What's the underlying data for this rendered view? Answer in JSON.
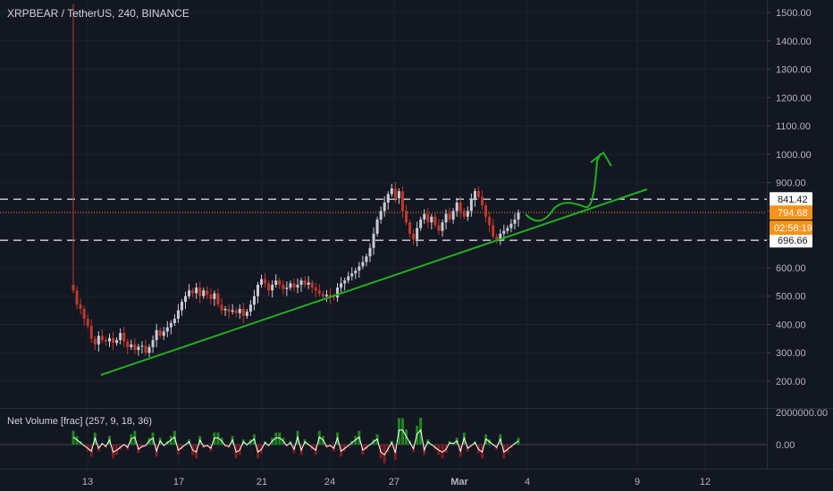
{
  "header": {
    "symbol_line": "XRPBEAR / TetherUS, 240, BINANCE"
  },
  "colors": {
    "background": "#131722",
    "grid": "#1e222d",
    "axis_text": "#b2b5be",
    "up": "#c9ccd4",
    "down": "#c0392b",
    "price_line": "#f7931a",
    "trendline": "#1fb01f",
    "dashed_level": "#d1d4dc",
    "volume_pos": "#1b8a1b",
    "volume_neg": "#7d1f1f",
    "volume_line": "#ffffff"
  },
  "chart_data": [
    {
      "type": "candlestick",
      "ylim": [
        150,
        1530
      ],
      "y_ticks": [
        "1500.00",
        "1400.00",
        "1300.00",
        "1200.00",
        "1100.00",
        "1000.00",
        "900.00",
        "800.00",
        "700.00",
        "600.00",
        "500.00",
        "400.00",
        "300.00",
        "200.00"
      ],
      "y_tick_values": [
        1500,
        1400,
        1300,
        1200,
        1100,
        1000,
        900,
        800,
        700,
        600,
        500,
        400,
        300,
        200
      ],
      "x_ticks": [
        "13",
        "17",
        "21",
        "24",
        "27",
        "Mar",
        "4",
        "9",
        "12"
      ],
      "levels": [
        {
          "label": "841.42",
          "value": 841.42,
          "style": "dashed"
        },
        {
          "label": "794.68",
          "value": 794.68,
          "style": "current"
        },
        {
          "label": "696.66",
          "value": 696.66,
          "style": "dashed"
        }
      ],
      "countdown": "02:56:19",
      "spike_high": 1530,
      "candles": [
        {
          "c": 520,
          "d": "down"
        },
        {
          "c": 470,
          "d": "down"
        },
        {
          "c": 455,
          "d": "down"
        },
        {
          "c": 420,
          "d": "down"
        },
        {
          "c": 395,
          "d": "down"
        },
        {
          "c": 350,
          "d": "down"
        },
        {
          "c": 330,
          "d": "down"
        },
        {
          "c": 360,
          "d": "up"
        },
        {
          "c": 345,
          "d": "down"
        },
        {
          "c": 340,
          "d": "down"
        },
        {
          "c": 352,
          "d": "up"
        },
        {
          "c": 335,
          "d": "down"
        },
        {
          "c": 345,
          "d": "up"
        },
        {
          "c": 370,
          "d": "up"
        },
        {
          "c": 340,
          "d": "down"
        },
        {
          "c": 320,
          "d": "down"
        },
        {
          "c": 330,
          "d": "up"
        },
        {
          "c": 310,
          "d": "down"
        },
        {
          "c": 322,
          "d": "up"
        },
        {
          "c": 325,
          "d": "up"
        },
        {
          "c": 300,
          "d": "down"
        },
        {
          "c": 320,
          "d": "up"
        },
        {
          "c": 345,
          "d": "up"
        },
        {
          "c": 380,
          "d": "up"
        },
        {
          "c": 360,
          "d": "down"
        },
        {
          "c": 375,
          "d": "up"
        },
        {
          "c": 390,
          "d": "up"
        },
        {
          "c": 405,
          "d": "up"
        },
        {
          "c": 420,
          "d": "up"
        },
        {
          "c": 450,
          "d": "up"
        },
        {
          "c": 480,
          "d": "up"
        },
        {
          "c": 500,
          "d": "up"
        },
        {
          "c": 520,
          "d": "up"
        },
        {
          "c": 510,
          "d": "down"
        },
        {
          "c": 530,
          "d": "up"
        },
        {
          "c": 500,
          "d": "down"
        },
        {
          "c": 520,
          "d": "up"
        },
        {
          "c": 505,
          "d": "down"
        },
        {
          "c": 490,
          "d": "down"
        },
        {
          "c": 510,
          "d": "up"
        },
        {
          "c": 470,
          "d": "down"
        },
        {
          "c": 450,
          "d": "down"
        },
        {
          "c": 455,
          "d": "up"
        },
        {
          "c": 445,
          "d": "down"
        },
        {
          "c": 450,
          "d": "up"
        },
        {
          "c": 440,
          "d": "down"
        },
        {
          "c": 455,
          "d": "up"
        },
        {
          "c": 430,
          "d": "down"
        },
        {
          "c": 445,
          "d": "up"
        },
        {
          "c": 470,
          "d": "up"
        },
        {
          "c": 500,
          "d": "up"
        },
        {
          "c": 540,
          "d": "up"
        },
        {
          "c": 560,
          "d": "up"
        },
        {
          "c": 545,
          "d": "down"
        },
        {
          "c": 520,
          "d": "down"
        },
        {
          "c": 540,
          "d": "up"
        },
        {
          "c": 555,
          "d": "up"
        },
        {
          "c": 540,
          "d": "down"
        },
        {
          "c": 525,
          "d": "down"
        },
        {
          "c": 530,
          "d": "up"
        },
        {
          "c": 545,
          "d": "up"
        },
        {
          "c": 530,
          "d": "down"
        },
        {
          "c": 540,
          "d": "up"
        },
        {
          "c": 555,
          "d": "up"
        },
        {
          "c": 540,
          "d": "down"
        },
        {
          "c": 548,
          "d": "up"
        },
        {
          "c": 530,
          "d": "down"
        },
        {
          "c": 520,
          "d": "down"
        },
        {
          "c": 508,
          "d": "down"
        },
        {
          "c": 500,
          "d": "down"
        },
        {
          "c": 505,
          "d": "up"
        },
        {
          "c": 498,
          "d": "down"
        },
        {
          "c": 495,
          "d": "down"
        },
        {
          "c": 530,
          "d": "up"
        },
        {
          "c": 545,
          "d": "up"
        },
        {
          "c": 555,
          "d": "up"
        },
        {
          "c": 570,
          "d": "up"
        },
        {
          "c": 580,
          "d": "up"
        },
        {
          "c": 590,
          "d": "up"
        },
        {
          "c": 605,
          "d": "up"
        },
        {
          "c": 620,
          "d": "up"
        },
        {
          "c": 640,
          "d": "up"
        },
        {
          "c": 670,
          "d": "up"
        },
        {
          "c": 720,
          "d": "up"
        },
        {
          "c": 770,
          "d": "up"
        },
        {
          "c": 800,
          "d": "up"
        },
        {
          "c": 830,
          "d": "up"
        },
        {
          "c": 860,
          "d": "up"
        },
        {
          "c": 880,
          "d": "up"
        },
        {
          "c": 845,
          "d": "down"
        },
        {
          "c": 870,
          "d": "up"
        },
        {
          "c": 800,
          "d": "down"
        },
        {
          "c": 760,
          "d": "down"
        },
        {
          "c": 720,
          "d": "down"
        },
        {
          "c": 700,
          "d": "down"
        },
        {
          "c": 740,
          "d": "up"
        },
        {
          "c": 770,
          "d": "up"
        },
        {
          "c": 790,
          "d": "up"
        },
        {
          "c": 760,
          "d": "down"
        },
        {
          "c": 780,
          "d": "up"
        },
        {
          "c": 750,
          "d": "down"
        },
        {
          "c": 730,
          "d": "down"
        },
        {
          "c": 760,
          "d": "up"
        },
        {
          "c": 790,
          "d": "up"
        },
        {
          "c": 770,
          "d": "down"
        },
        {
          "c": 800,
          "d": "up"
        },
        {
          "c": 830,
          "d": "up"
        },
        {
          "c": 800,
          "d": "down"
        },
        {
          "c": 780,
          "d": "down"
        },
        {
          "c": 800,
          "d": "up"
        },
        {
          "c": 840,
          "d": "up"
        },
        {
          "c": 870,
          "d": "up"
        },
        {
          "c": 850,
          "d": "down"
        },
        {
          "c": 820,
          "d": "down"
        },
        {
          "c": 780,
          "d": "down"
        },
        {
          "c": 750,
          "d": "down"
        },
        {
          "c": 710,
          "d": "down"
        },
        {
          "c": 700,
          "d": "down"
        },
        {
          "c": 720,
          "d": "up"
        },
        {
          "c": 730,
          "d": "up"
        },
        {
          "c": 740,
          "d": "up"
        },
        {
          "c": 755,
          "d": "up"
        },
        {
          "c": 770,
          "d": "up"
        },
        {
          "c": 795,
          "d": "up"
        }
      ],
      "trendline": {
        "x0": 0.25,
        "y0": 222,
        "x1": 1.6,
        "y1": 870
      },
      "projection": "curved arrow upward"
    },
    {
      "type": "line",
      "title": "Net Volume [frac] (257, 9, 18, 36)",
      "y_ticks": [
        "2000000.00",
        "0.00"
      ],
      "y_tick_values": [
        2000000,
        0
      ]
    }
  ],
  "footer": {
    "tv_logo": "tv-logo-icon"
  }
}
